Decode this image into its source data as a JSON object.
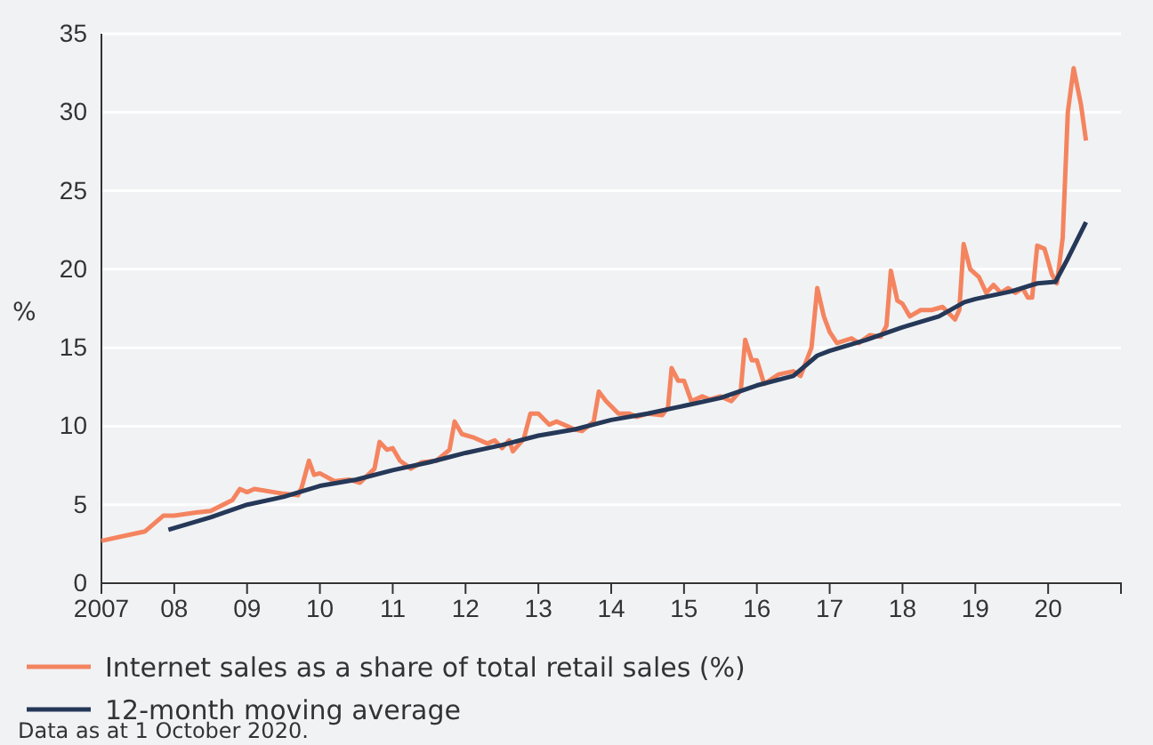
{
  "chart_data": {
    "type": "line",
    "ylabel": "%",
    "xlim": [
      2007,
      2021
    ],
    "ylim": [
      0,
      35
    ],
    "xticks": [
      {
        "value": 2007,
        "label": "2007"
      },
      {
        "value": 2008,
        "label": "08"
      },
      {
        "value": 2009,
        "label": "09"
      },
      {
        "value": 2010,
        "label": "10"
      },
      {
        "value": 2011,
        "label": "11"
      },
      {
        "value": 2012,
        "label": "12"
      },
      {
        "value": 2013,
        "label": "13"
      },
      {
        "value": 2014,
        "label": "14"
      },
      {
        "value": 2015,
        "label": "15"
      },
      {
        "value": 2016,
        "label": "16"
      },
      {
        "value": 2017,
        "label": "17"
      },
      {
        "value": 2018,
        "label": "18"
      },
      {
        "value": 2019,
        "label": "19"
      },
      {
        "value": 2020,
        "label": "20"
      },
      {
        "value": 2021,
        "label": null
      }
    ],
    "yticks": [
      0,
      5,
      10,
      15,
      20,
      25,
      30,
      35
    ],
    "grid": "y",
    "legend": "bottom",
    "marker": "none",
    "line_style": "solid",
    "series": [
      {
        "name": "Internet sales as a share of total retail sales (%)",
        "color": "#f4845f",
        "x": [
          2007.0,
          2007.3,
          2007.6,
          2007.85,
          2008.0,
          2008.3,
          2008.5,
          2008.8,
          2008.9,
          2009.0,
          2009.1,
          2009.5,
          2009.7,
          2009.75,
          2009.85,
          2009.92,
          2010.0,
          2010.2,
          2010.4,
          2010.55,
          2010.75,
          2010.82,
          2010.92,
          2011.0,
          2011.1,
          2011.25,
          2011.4,
          2011.6,
          2011.78,
          2011.85,
          2011.95,
          2012.1,
          2012.3,
          2012.4,
          2012.5,
          2012.6,
          2012.65,
          2012.8,
          2012.89,
          2013.0,
          2013.15,
          2013.25,
          2013.5,
          2013.6,
          2013.76,
          2013.83,
          2013.93,
          2014.1,
          2014.25,
          2014.35,
          2014.5,
          2014.7,
          2014.78,
          2014.83,
          2014.92,
          2015.0,
          2015.1,
          2015.25,
          2015.35,
          2015.5,
          2015.65,
          2015.78,
          2015.84,
          2015.93,
          2016.0,
          2016.1,
          2016.3,
          2016.5,
          2016.6,
          2016.75,
          2016.83,
          2016.92,
          2017.0,
          2017.1,
          2017.3,
          2017.4,
          2017.55,
          2017.7,
          2017.78,
          2017.84,
          2017.93,
          2018.0,
          2018.1,
          2018.25,
          2018.4,
          2018.55,
          2018.72,
          2018.78,
          2018.84,
          2018.93,
          2019.05,
          2019.15,
          2019.25,
          2019.35,
          2019.45,
          2019.55,
          2019.65,
          2019.72,
          2019.78,
          2019.85,
          2019.95,
          2020.05,
          2020.12,
          2020.2,
          2020.27,
          2020.35,
          2020.45,
          2020.52
        ],
        "values": [
          2.7,
          3.0,
          3.3,
          4.3,
          4.3,
          4.5,
          4.6,
          5.3,
          6.0,
          5.8,
          6.0,
          5.7,
          5.6,
          6.1,
          7.8,
          6.9,
          7.0,
          6.5,
          6.6,
          6.4,
          7.3,
          9.0,
          8.5,
          8.6,
          7.8,
          7.3,
          7.7,
          7.8,
          8.5,
          10.3,
          9.5,
          9.3,
          8.9,
          9.1,
          8.6,
          9.1,
          8.4,
          9.2,
          10.8,
          10.8,
          10.1,
          10.3,
          9.8,
          9.7,
          10.3,
          12.2,
          11.6,
          10.8,
          10.8,
          10.6,
          10.8,
          10.7,
          11.2,
          13.7,
          12.9,
          12.9,
          11.6,
          11.9,
          11.7,
          11.9,
          11.6,
          12.3,
          15.5,
          14.2,
          14.2,
          12.7,
          13.3,
          13.5,
          13.2,
          15.0,
          18.8,
          17.0,
          16.0,
          15.3,
          15.6,
          15.3,
          15.8,
          15.7,
          16.4,
          19.9,
          18.0,
          17.8,
          17.0,
          17.4,
          17.4,
          17.6,
          16.8,
          17.4,
          21.6,
          20.0,
          19.5,
          18.5,
          19.0,
          18.5,
          18.8,
          18.5,
          18.8,
          18.2,
          18.2,
          21.5,
          21.3,
          19.7,
          19.1,
          22.0,
          30.0,
          32.8,
          30.5,
          28.2
        ]
      },
      {
        "name": "12-month moving average",
        "color": "#253858",
        "x": [
          2007.92,
          2008.5,
          2009.0,
          2009.5,
          2010.0,
          2010.5,
          2011.0,
          2011.5,
          2012.0,
          2012.5,
          2013.0,
          2013.5,
          2014.0,
          2014.5,
          2015.0,
          2015.5,
          2016.0,
          2016.5,
          2016.83,
          2017.0,
          2017.5,
          2018.0,
          2018.5,
          2018.85,
          2019.0,
          2019.5,
          2019.85,
          2020.1,
          2020.25,
          2020.52
        ],
        "values": [
          3.4,
          4.2,
          5.0,
          5.5,
          6.2,
          6.6,
          7.2,
          7.7,
          8.3,
          8.8,
          9.4,
          9.8,
          10.4,
          10.8,
          11.3,
          11.8,
          12.6,
          13.2,
          14.5,
          14.8,
          15.5,
          16.3,
          17.0,
          17.9,
          18.1,
          18.6,
          19.1,
          19.2,
          20.5,
          23.0
        ]
      }
    ],
    "annotations": [
      "Data as at 1 October 2020."
    ]
  }
}
